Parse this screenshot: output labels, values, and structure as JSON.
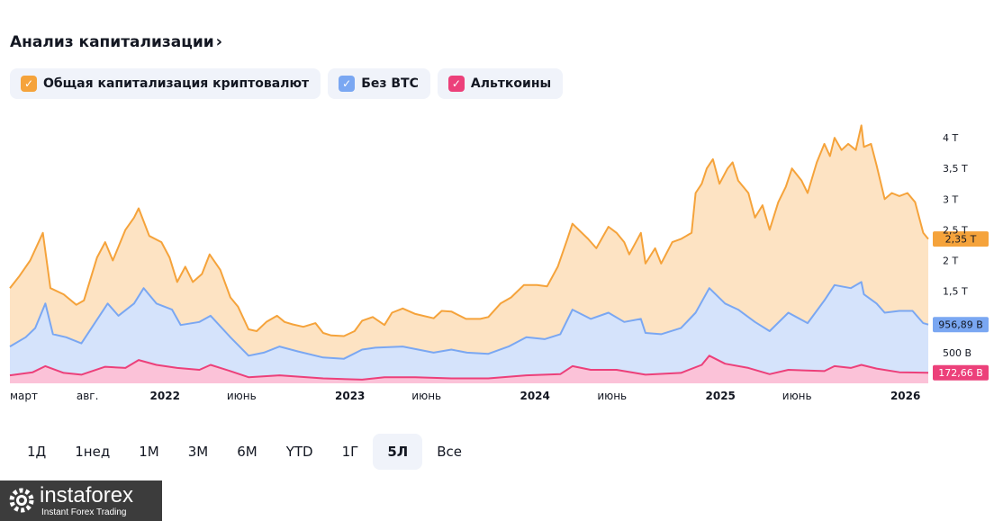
{
  "header": {
    "title": "Анализ капитализации",
    "chevron": "›"
  },
  "legend": [
    {
      "label": "Общая капитализация криптовалют",
      "color": "#f5a33b",
      "check": "✓"
    },
    {
      "label": "Без BTC",
      "color": "#7aa7f2",
      "check": "✓"
    },
    {
      "label": "Альткоины",
      "color": "#ec407a",
      "check": "✓"
    }
  ],
  "periods": [
    {
      "label": "1Д"
    },
    {
      "label": "1нед"
    },
    {
      "label": "1М"
    },
    {
      "label": "3М"
    },
    {
      "label": "6М"
    },
    {
      "label": "YTD"
    },
    {
      "label": "1Г"
    },
    {
      "label": "5Л",
      "active": true
    },
    {
      "label": "Все"
    }
  ],
  "brand": {
    "name": "instaforex",
    "tagline": "Instant Forex Trading"
  },
  "chart_data": {
    "type": "area",
    "x_start": "2021-03-01",
    "x_end": "2026-02-15",
    "x_ticks": [
      {
        "date": "2021-03-01",
        "label": "март"
      },
      {
        "date": "2021-08-01",
        "label": "авг."
      },
      {
        "date": "2022-01-01",
        "label": "2022"
      },
      {
        "date": "2022-06-01",
        "label": "июнь"
      },
      {
        "date": "2023-01-01",
        "label": "2023"
      },
      {
        "date": "2023-06-01",
        "label": "июнь"
      },
      {
        "date": "2024-01-01",
        "label": "2024"
      },
      {
        "date": "2024-06-01",
        "label": "июнь"
      },
      {
        "date": "2025-01-01",
        "label": "2025"
      },
      {
        "date": "2025-06-01",
        "label": "июнь"
      },
      {
        "date": "2026-01-01",
        "label": "2026"
      }
    ],
    "y_unit": "trillion USD",
    "ylim": [
      0,
      4.25
    ],
    "y_ticks": [
      {
        "value": 0.5,
        "label": "500 B"
      },
      {
        "value": 1.5,
        "label": "1,5 T"
      },
      {
        "value": 2,
        "label": "2 T"
      },
      {
        "value": 2.5,
        "label": "2,5 T"
      },
      {
        "value": 3,
        "label": "3 T"
      },
      {
        "value": 3.5,
        "label": "3,5 T"
      },
      {
        "value": 4,
        "label": "4 T"
      }
    ],
    "series": [
      {
        "name": "Общая капитализация криптовалют",
        "color": "#f5a33b",
        "fill": "#fde3c3",
        "last_label": "2,35 T",
        "points": [
          [
            "2021-03-01",
            1.55
          ],
          [
            "2021-03-20",
            1.75
          ],
          [
            "2021-04-10",
            2.0
          ],
          [
            "2021-05-05",
            2.45
          ],
          [
            "2021-05-20",
            1.55
          ],
          [
            "2021-06-15",
            1.45
          ],
          [
            "2021-07-10",
            1.28
          ],
          [
            "2021-07-25",
            1.35
          ],
          [
            "2021-08-20",
            2.05
          ],
          [
            "2021-09-05",
            2.3
          ],
          [
            "2021-09-20",
            2.0
          ],
          [
            "2021-10-15",
            2.5
          ],
          [
            "2021-11-01",
            2.7
          ],
          [
            "2021-11-10",
            2.85
          ],
          [
            "2021-12-01",
            2.4
          ],
          [
            "2021-12-25",
            2.3
          ],
          [
            "2022-01-10",
            2.05
          ],
          [
            "2022-01-25",
            1.65
          ],
          [
            "2022-02-10",
            1.9
          ],
          [
            "2022-02-25",
            1.65
          ],
          [
            "2022-03-15",
            1.78
          ],
          [
            "2022-03-30",
            2.1
          ],
          [
            "2022-04-20",
            1.85
          ],
          [
            "2022-05-10",
            1.4
          ],
          [
            "2022-05-25",
            1.25
          ],
          [
            "2022-06-15",
            0.88
          ],
          [
            "2022-07-01",
            0.85
          ],
          [
            "2022-07-20",
            1.0
          ],
          [
            "2022-08-10",
            1.1
          ],
          [
            "2022-08-25",
            1.0
          ],
          [
            "2022-09-10",
            0.96
          ],
          [
            "2022-10-01",
            0.92
          ],
          [
            "2022-10-25",
            0.98
          ],
          [
            "2022-11-09",
            0.82
          ],
          [
            "2022-11-25",
            0.78
          ],
          [
            "2022-12-20",
            0.77
          ],
          [
            "2023-01-10",
            0.85
          ],
          [
            "2023-01-25",
            1.02
          ],
          [
            "2023-02-15",
            1.08
          ],
          [
            "2023-03-10",
            0.95
          ],
          [
            "2023-03-25",
            1.15
          ],
          [
            "2023-04-15",
            1.22
          ],
          [
            "2023-05-10",
            1.13
          ],
          [
            "2023-06-15",
            1.06
          ],
          [
            "2023-07-01",
            1.18
          ],
          [
            "2023-07-20",
            1.17
          ],
          [
            "2023-08-18",
            1.05
          ],
          [
            "2023-09-15",
            1.05
          ],
          [
            "2023-10-01",
            1.08
          ],
          [
            "2023-10-25",
            1.3
          ],
          [
            "2023-11-15",
            1.4
          ],
          [
            "2023-12-10",
            1.6
          ],
          [
            "2024-01-05",
            1.6
          ],
          [
            "2024-01-25",
            1.58
          ],
          [
            "2024-02-15",
            1.9
          ],
          [
            "2024-03-05",
            2.35
          ],
          [
            "2024-03-15",
            2.6
          ],
          [
            "2024-04-15",
            2.35
          ],
          [
            "2024-05-01",
            2.2
          ],
          [
            "2024-05-25",
            2.55
          ],
          [
            "2024-06-10",
            2.45
          ],
          [
            "2024-06-25",
            2.3
          ],
          [
            "2024-07-05",
            2.1
          ],
          [
            "2024-07-28",
            2.45
          ],
          [
            "2024-08-06",
            1.95
          ],
          [
            "2024-08-25",
            2.2
          ],
          [
            "2024-09-06",
            1.95
          ],
          [
            "2024-09-28",
            2.3
          ],
          [
            "2024-10-15",
            2.35
          ],
          [
            "2024-11-05",
            2.45
          ],
          [
            "2024-11-13",
            3.1
          ],
          [
            "2024-11-25",
            3.25
          ],
          [
            "2024-12-05",
            3.5
          ],
          [
            "2024-12-17",
            3.65
          ],
          [
            "2024-12-30",
            3.25
          ],
          [
            "2025-01-15",
            3.5
          ],
          [
            "2025-01-25",
            3.6
          ],
          [
            "2025-02-05",
            3.3
          ],
          [
            "2025-02-25",
            3.1
          ],
          [
            "2025-03-10",
            2.7
          ],
          [
            "2025-03-25",
            2.9
          ],
          [
            "2025-04-08",
            2.5
          ],
          [
            "2025-04-25",
            2.95
          ],
          [
            "2025-05-10",
            3.2
          ],
          [
            "2025-05-22",
            3.5
          ],
          [
            "2025-06-10",
            3.3
          ],
          [
            "2025-06-22",
            3.1
          ],
          [
            "2025-07-10",
            3.6
          ],
          [
            "2025-07-25",
            3.9
          ],
          [
            "2025-08-05",
            3.7
          ],
          [
            "2025-08-14",
            4.0
          ],
          [
            "2025-08-28",
            3.8
          ],
          [
            "2025-09-10",
            3.9
          ],
          [
            "2025-09-25",
            3.8
          ],
          [
            "2025-10-06",
            4.2
          ],
          [
            "2025-10-11",
            3.85
          ],
          [
            "2025-10-25",
            3.9
          ],
          [
            "2025-11-05",
            3.55
          ],
          [
            "2025-11-21",
            3.0
          ],
          [
            "2025-12-05",
            3.1
          ],
          [
            "2025-12-20",
            3.05
          ],
          [
            "2026-01-05",
            3.1
          ],
          [
            "2026-01-20",
            2.95
          ],
          [
            "2026-02-05",
            2.45
          ],
          [
            "2026-02-15",
            2.35
          ]
        ]
      },
      {
        "name": "Без BTC",
        "color": "#7aa7f2",
        "fill": "#d5e3fb",
        "last_label": "956,89 B",
        "points": [
          [
            "2021-03-01",
            0.6
          ],
          [
            "2021-04-01",
            0.75
          ],
          [
            "2021-04-20",
            0.9
          ],
          [
            "2021-05-10",
            1.3
          ],
          [
            "2021-05-25",
            0.8
          ],
          [
            "2021-06-20",
            0.75
          ],
          [
            "2021-07-20",
            0.65
          ],
          [
            "2021-08-25",
            1.1
          ],
          [
            "2021-09-10",
            1.3
          ],
          [
            "2021-10-01",
            1.1
          ],
          [
            "2021-11-01",
            1.3
          ],
          [
            "2021-11-20",
            1.55
          ],
          [
            "2021-12-15",
            1.3
          ],
          [
            "2022-01-15",
            1.2
          ],
          [
            "2022-02-01",
            0.95
          ],
          [
            "2022-03-10",
            1.0
          ],
          [
            "2022-04-01",
            1.1
          ],
          [
            "2022-05-10",
            0.75
          ],
          [
            "2022-06-15",
            0.45
          ],
          [
            "2022-07-15",
            0.5
          ],
          [
            "2022-08-15",
            0.6
          ],
          [
            "2022-09-20",
            0.52
          ],
          [
            "2022-11-09",
            0.42
          ],
          [
            "2022-12-20",
            0.4
          ],
          [
            "2023-01-25",
            0.55
          ],
          [
            "2023-02-20",
            0.58
          ],
          [
            "2023-04-15",
            0.6
          ],
          [
            "2023-06-15",
            0.5
          ],
          [
            "2023-07-20",
            0.55
          ],
          [
            "2023-08-20",
            0.5
          ],
          [
            "2023-10-01",
            0.48
          ],
          [
            "2023-11-10",
            0.6
          ],
          [
            "2023-12-15",
            0.75
          ],
          [
            "2024-01-20",
            0.72
          ],
          [
            "2024-02-20",
            0.8
          ],
          [
            "2024-03-15",
            1.2
          ],
          [
            "2024-04-20",
            1.05
          ],
          [
            "2024-05-25",
            1.15
          ],
          [
            "2024-06-25",
            1.0
          ],
          [
            "2024-07-28",
            1.05
          ],
          [
            "2024-08-06",
            0.82
          ],
          [
            "2024-09-06",
            0.8
          ],
          [
            "2024-10-15",
            0.9
          ],
          [
            "2024-11-13",
            1.15
          ],
          [
            "2024-12-10",
            1.55
          ],
          [
            "2025-01-10",
            1.3
          ],
          [
            "2025-02-05",
            1.2
          ],
          [
            "2025-03-10",
            1.0
          ],
          [
            "2025-04-08",
            0.85
          ],
          [
            "2025-05-15",
            1.15
          ],
          [
            "2025-06-22",
            0.98
          ],
          [
            "2025-07-25",
            1.35
          ],
          [
            "2025-08-14",
            1.6
          ],
          [
            "2025-09-15",
            1.55
          ],
          [
            "2025-10-06",
            1.65
          ],
          [
            "2025-10-11",
            1.45
          ],
          [
            "2025-11-05",
            1.3
          ],
          [
            "2025-11-21",
            1.15
          ],
          [
            "2025-12-20",
            1.18
          ],
          [
            "2026-01-15",
            1.18
          ],
          [
            "2026-02-05",
            0.98
          ],
          [
            "2026-02-15",
            0.957
          ]
        ]
      },
      {
        "name": "Альткоины",
        "color": "#ec407a",
        "fill": "#fbc2d8",
        "last_label": "172,66 B",
        "points": [
          [
            "2021-03-01",
            0.13
          ],
          [
            "2021-04-15",
            0.18
          ],
          [
            "2021-05-10",
            0.28
          ],
          [
            "2021-06-15",
            0.17
          ],
          [
            "2021-07-20",
            0.14
          ],
          [
            "2021-09-05",
            0.27
          ],
          [
            "2021-10-15",
            0.25
          ],
          [
            "2021-11-10",
            0.38
          ],
          [
            "2021-12-15",
            0.3
          ],
          [
            "2022-01-25",
            0.25
          ],
          [
            "2022-03-10",
            0.22
          ],
          [
            "2022-04-01",
            0.3
          ],
          [
            "2022-05-10",
            0.2
          ],
          [
            "2022-06-15",
            0.1
          ],
          [
            "2022-08-15",
            0.13
          ],
          [
            "2022-11-09",
            0.08
          ],
          [
            "2023-01-25",
            0.06
          ],
          [
            "2023-03-10",
            0.1
          ],
          [
            "2023-05-10",
            0.1
          ],
          [
            "2023-07-20",
            0.08
          ],
          [
            "2023-10-01",
            0.08
          ],
          [
            "2023-12-15",
            0.13
          ],
          [
            "2024-02-20",
            0.15
          ],
          [
            "2024-03-15",
            0.28
          ],
          [
            "2024-04-20",
            0.22
          ],
          [
            "2024-06-10",
            0.22
          ],
          [
            "2024-08-06",
            0.14
          ],
          [
            "2024-10-15",
            0.17
          ],
          [
            "2024-11-25",
            0.3
          ],
          [
            "2024-12-10",
            0.45
          ],
          [
            "2025-01-10",
            0.32
          ],
          [
            "2025-02-25",
            0.25
          ],
          [
            "2025-04-08",
            0.15
          ],
          [
            "2025-05-15",
            0.22
          ],
          [
            "2025-07-25",
            0.2
          ],
          [
            "2025-08-14",
            0.28
          ],
          [
            "2025-09-15",
            0.25
          ],
          [
            "2025-10-06",
            0.3
          ],
          [
            "2025-11-05",
            0.24
          ],
          [
            "2025-12-20",
            0.18
          ],
          [
            "2026-02-15",
            0.173
          ]
        ]
      }
    ]
  }
}
